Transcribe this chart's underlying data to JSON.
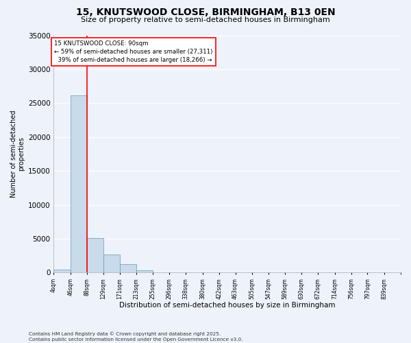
{
  "title": "15, KNUTSWOOD CLOSE, BIRMINGHAM, B13 0EN",
  "subtitle": "Size of property relative to semi-detached houses in Birmingham",
  "xlabel": "Distribution of semi-detached houses by size in Birmingham",
  "ylabel": "Number of semi-detached\nproperties",
  "property_label": "15 KNUTSWOOD CLOSE: 90sqm",
  "pct_smaller": 59,
  "pct_larger": 39,
  "n_smaller": 27311,
  "n_larger": 18266,
  "bin_labels": [
    "4sqm",
    "46sqm",
    "88sqm",
    "129sqm",
    "171sqm",
    "213sqm",
    "255sqm",
    "296sqm",
    "338sqm",
    "380sqm",
    "422sqm",
    "463sqm",
    "505sqm",
    "547sqm",
    "589sqm",
    "630sqm",
    "672sqm",
    "714sqm",
    "756sqm",
    "797sqm",
    "839sqm"
  ],
  "bin_edges": [
    4,
    46,
    88,
    129,
    171,
    213,
    255,
    296,
    338,
    380,
    422,
    463,
    505,
    547,
    589,
    630,
    672,
    714,
    756,
    797,
    839,
    881
  ],
  "bar_values": [
    480,
    26100,
    5100,
    2700,
    1200,
    290,
    75,
    28,
    8,
    4,
    2,
    1,
    1,
    0,
    0,
    0,
    0,
    0,
    0,
    0,
    0
  ],
  "bar_color": "#c9daea",
  "bar_edge_color": "#6699bb",
  "vline_color": "red",
  "vline_x_idx": 2,
  "ylim": [
    0,
    35000
  ],
  "yticks": [
    0,
    5000,
    10000,
    15000,
    20000,
    25000,
    30000,
    35000
  ],
  "footnote": "Contains HM Land Registry data © Crown copyright and database right 2025.\nContains public sector information licensed under the Open Government Licence v3.0.",
  "background_color": "#eef2fb",
  "grid_color": "#ffffff",
  "title_fontsize": 10,
  "subtitle_fontsize": 8
}
